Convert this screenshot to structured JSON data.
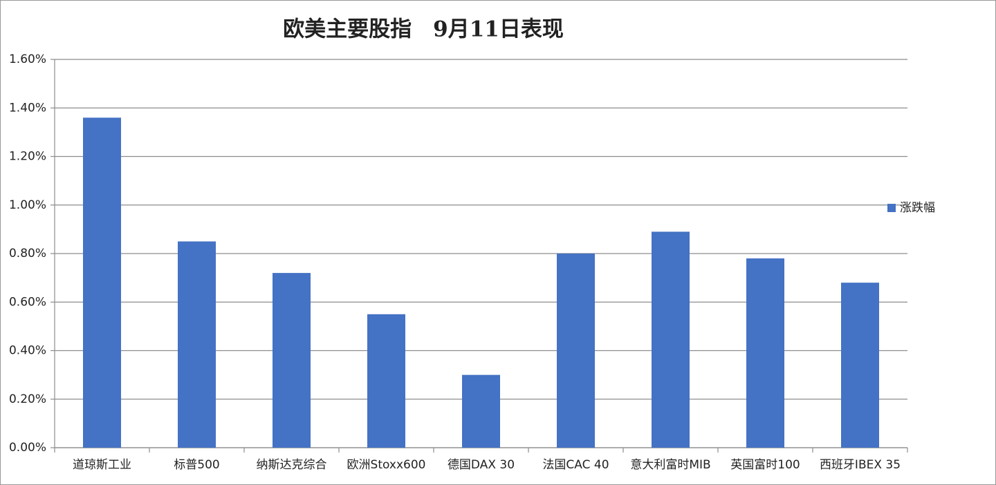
{
  "chart_data": {
    "type": "bar",
    "title": "欧美主要股指　9月11日表现",
    "categories": [
      "道琼斯工业",
      "标普500",
      "纳斯达克综合",
      "欧洲Stoxx600",
      "德国DAX 30",
      "法国CAC 40",
      "意大利富时MIB",
      "英国富时100",
      "西班牙IBEX 35"
    ],
    "series": [
      {
        "name": "涨跌幅",
        "color": "#4472c4",
        "values": [
          1.36,
          0.85,
          0.72,
          0.55,
          0.3,
          0.8,
          0.89,
          0.78,
          0.68
        ]
      }
    ],
    "ylim": [
      0,
      1.6
    ],
    "yticks": [
      {
        "value": 0,
        "label": "0.00%"
      },
      {
        "value": 0.2,
        "label": "0.20%"
      },
      {
        "value": 0.4,
        "label": "0.40%"
      },
      {
        "value": 0.6,
        "label": "0.60%"
      },
      {
        "value": 0.8,
        "label": "0.80%"
      },
      {
        "value": 1.0,
        "label": "1.00%"
      },
      {
        "value": 1.2,
        "label": "1.20%"
      },
      {
        "value": 1.4,
        "label": "1.40%"
      },
      {
        "value": 1.6,
        "label": "1.60%"
      }
    ],
    "grid": true,
    "legend": "right"
  }
}
